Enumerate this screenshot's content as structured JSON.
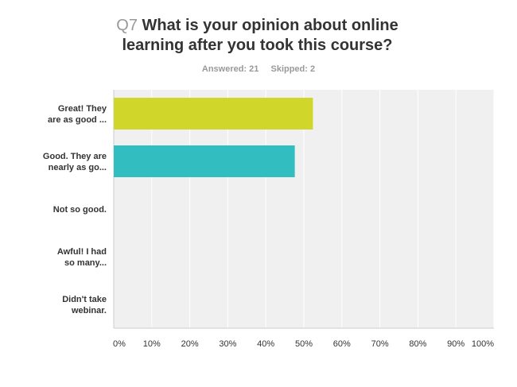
{
  "question": {
    "number": "Q7",
    "title_line1": "What is your opinion about online",
    "title_line2": "learning after you took this course?",
    "answered": "Answered: 21",
    "skipped": "Skipped: 2"
  },
  "chart_data": {
    "type": "bar",
    "orientation": "horizontal",
    "categories": [
      [
        "Great! They",
        "are as good ..."
      ],
      [
        "Good. They are",
        "nearly as go..."
      ],
      [
        "Not so good."
      ],
      [
        "Awful! I had",
        "so many..."
      ],
      [
        "Didn't take",
        "webinar."
      ]
    ],
    "values": [
      52.38,
      47.62,
      0,
      0,
      0
    ],
    "colors": [
      "#d1d72a",
      "#32bec0",
      "#6b8ed0",
      "#e08a3c",
      "#9a7cc6"
    ],
    "xlim": [
      0,
      100
    ],
    "xticks": [
      "0%",
      "10%",
      "20%",
      "30%",
      "40%",
      "50%",
      "60%",
      "70%",
      "80%",
      "90%",
      "100%"
    ],
    "grid": true,
    "background": "#f0f0f0"
  }
}
